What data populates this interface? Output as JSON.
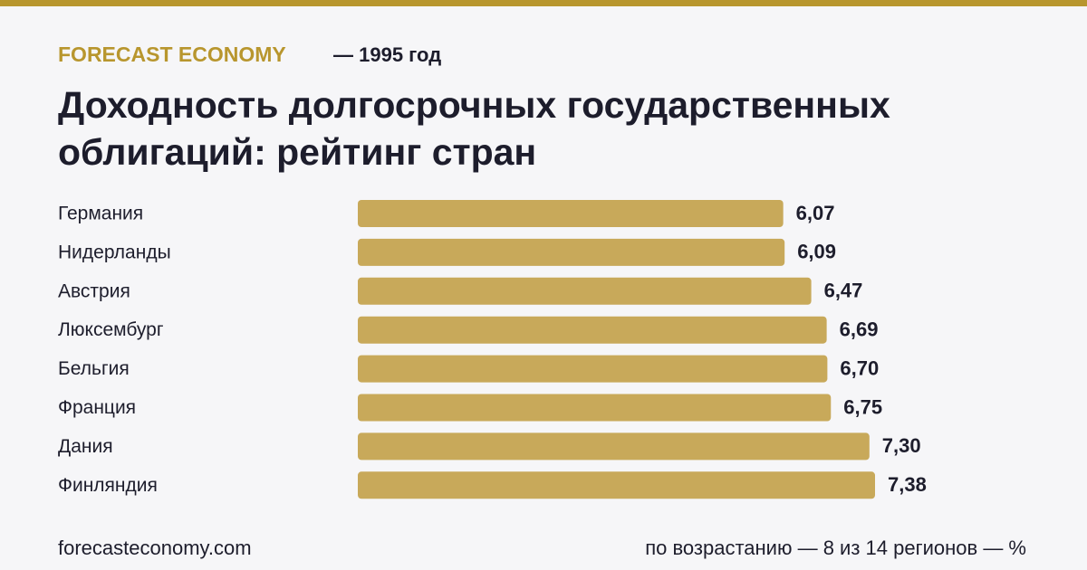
{
  "chart_data": {
    "type": "bar",
    "orientation": "horizontal",
    "brand": "FORECAST ECONOMY",
    "subtitle": "— 1995 год",
    "title": "Доходность долгосрочных государственных облигаций: рейтинг стран",
    "categories": [
      "Германия",
      "Нидерланды",
      "Австрия",
      "Люксембург",
      "Бельгия",
      "Франция",
      "Дания",
      "Финляндия"
    ],
    "values": [
      6.07,
      6.09,
      6.47,
      6.69,
      6.7,
      6.75,
      7.3,
      7.38
    ],
    "value_labels": [
      "6,07",
      "6,09",
      "6,47",
      "6,69",
      "6,70",
      "6,75",
      "7,30",
      "7,38"
    ],
    "color": "#c8a95a",
    "source": "forecasteconomy.com",
    "note": "по возрастанию — 8 из 14 регионов — %"
  }
}
